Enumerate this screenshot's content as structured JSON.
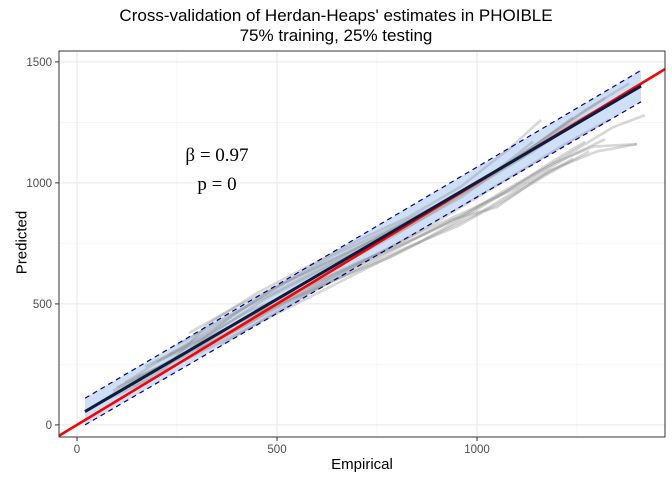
{
  "chart_data": {
    "type": "line",
    "title": "Cross-validation of Herdan-Heaps' estimates in PHOIBLE",
    "subtitle": "75% training, 25% testing",
    "xlabel": "Empirical",
    "ylabel": "Predicted",
    "xlim": [
      -45,
      1470
    ],
    "ylim": [
      -50,
      1545
    ],
    "xticks": [
      0,
      500,
      1000
    ],
    "yticks": [
      0,
      500,
      1000,
      1500
    ],
    "grid": true,
    "annotations": [
      "β = 0.97",
      "p = 0"
    ],
    "fit": {
      "x": [
        20,
        1410
      ],
      "y": [
        55,
        1400
      ],
      "ci_lower": [
        0,
        1335
      ],
      "ci_upper": [
        110,
        1465
      ],
      "color": "#0d1b3e",
      "ribbon_color": "#c6dbf7",
      "bound_color": "#00008b"
    },
    "identity_line": {
      "slope": 1,
      "intercept": 0,
      "color": "#ff0000"
    },
    "series": [
      {
        "values": [
          [
            100,
            155
          ],
          [
            220,
            235
          ],
          [
            330,
            420
          ],
          [
            450,
            545
          ],
          [
            560,
            640
          ],
          [
            700,
            760
          ],
          [
            830,
            860
          ],
          [
            960,
            985
          ],
          [
            1080,
            1140
          ],
          [
            1160,
            1260
          ]
        ]
      },
      {
        "values": [
          [
            120,
            175
          ],
          [
            260,
            280
          ],
          [
            390,
            455
          ],
          [
            520,
            590
          ],
          [
            640,
            680
          ],
          [
            780,
            800
          ],
          [
            900,
            905
          ],
          [
            1020,
            1020
          ],
          [
            1140,
            1150
          ],
          [
            1240,
            1270
          ]
        ]
      },
      {
        "values": [
          [
            150,
            195
          ],
          [
            290,
            310
          ],
          [
            430,
            450
          ],
          [
            560,
            540
          ],
          [
            690,
            650
          ],
          [
            820,
            750
          ],
          [
            940,
            850
          ],
          [
            1050,
            900
          ],
          [
            1180,
            1050
          ],
          [
            1300,
            1130
          ],
          [
            1400,
            1160
          ]
        ]
      },
      {
        "values": [
          [
            200,
            260
          ],
          [
            340,
            370
          ],
          [
            470,
            480
          ],
          [
            600,
            590
          ],
          [
            720,
            680
          ],
          [
            850,
            790
          ],
          [
            970,
            880
          ],
          [
            1100,
            980
          ],
          [
            1230,
            1110
          ],
          [
            1320,
            1180
          ]
        ]
      },
      {
        "values": [
          [
            60,
            95
          ],
          [
            190,
            215
          ],
          [
            320,
            330
          ],
          [
            450,
            450
          ],
          [
            580,
            550
          ],
          [
            700,
            640
          ],
          [
            820,
            730
          ],
          [
            950,
            820
          ],
          [
            1060,
            920
          ],
          [
            1180,
            1040
          ],
          [
            1280,
            1130
          ]
        ]
      },
      {
        "values": [
          [
            230,
            290
          ],
          [
            360,
            420
          ],
          [
            490,
            560
          ],
          [
            620,
            670
          ],
          [
            750,
            770
          ],
          [
            870,
            870
          ],
          [
            990,
            980
          ],
          [
            1110,
            1100
          ],
          [
            1220,
            1230
          ],
          [
            1300,
            1300
          ]
        ]
      },
      {
        "values": [
          [
            250,
            330
          ],
          [
            390,
            460
          ],
          [
            520,
            570
          ],
          [
            650,
            680
          ],
          [
            780,
            800
          ],
          [
            900,
            900
          ],
          [
            1030,
            1030
          ],
          [
            1150,
            1160
          ],
          [
            1270,
            1300
          ],
          [
            1380,
            1410
          ]
        ]
      },
      {
        "values": [
          [
            170,
            240
          ],
          [
            300,
            350
          ],
          [
            430,
            470
          ],
          [
            560,
            560
          ],
          [
            700,
            670
          ],
          [
            830,
            760
          ],
          [
            950,
            850
          ],
          [
            1070,
            970
          ],
          [
            1190,
            1080
          ],
          [
            1290,
            1150
          ],
          [
            1400,
            1160
          ]
        ]
      },
      {
        "values": [
          [
            300,
            310
          ],
          [
            420,
            410
          ],
          [
            540,
            520
          ],
          [
            660,
            610
          ],
          [
            780,
            690
          ],
          [
            900,
            790
          ],
          [
            1010,
            880
          ],
          [
            1120,
            990
          ],
          [
            1240,
            1100
          ]
        ]
      },
      {
        "values": [
          [
            90,
            140
          ],
          [
            210,
            270
          ],
          [
            340,
            380
          ],
          [
            470,
            520
          ],
          [
            600,
            630
          ],
          [
            720,
            730
          ],
          [
            840,
            830
          ],
          [
            960,
            940
          ],
          [
            1080,
            1080
          ],
          [
            1200,
            1220
          ],
          [
            1320,
            1350
          ]
        ]
      },
      {
        "values": [
          [
            360,
            330
          ],
          [
            480,
            450
          ],
          [
            610,
            570
          ],
          [
            740,
            680
          ],
          [
            860,
            780
          ],
          [
            980,
            880
          ],
          [
            1100,
            990
          ],
          [
            1220,
            1110
          ],
          [
            1340,
            1230
          ],
          [
            1420,
            1280
          ]
        ]
      },
      {
        "values": [
          [
            20,
            55
          ],
          [
            140,
            180
          ],
          [
            270,
            300
          ],
          [
            400,
            420
          ],
          [
            530,
            520
          ],
          [
            660,
            630
          ],
          [
            780,
            730
          ],
          [
            900,
            840
          ],
          [
            1010,
            950
          ],
          [
            1120,
            1060
          ],
          [
            1230,
            1170
          ],
          [
            1330,
            1260
          ]
        ]
      },
      {
        "values": [
          [
            140,
            160
          ],
          [
            260,
            260
          ],
          [
            380,
            360
          ],
          [
            500,
            460
          ],
          [
            620,
            560
          ],
          [
            740,
            660
          ],
          [
            850,
            750
          ],
          [
            960,
            850
          ],
          [
            1070,
            960
          ],
          [
            1180,
            1080
          ],
          [
            1270,
            1170
          ]
        ]
      },
      {
        "values": [
          [
            80,
            110
          ],
          [
            200,
            200
          ],
          [
            320,
            320
          ],
          [
            440,
            430
          ],
          [
            560,
            560
          ],
          [
            680,
            680
          ],
          [
            800,
            790
          ],
          [
            920,
            910
          ],
          [
            1040,
            1040
          ],
          [
            1140,
            1170
          ]
        ]
      },
      {
        "values": [
          [
            280,
            380
          ],
          [
            400,
            490
          ],
          [
            520,
            590
          ],
          [
            640,
            700
          ],
          [
            770,
            800
          ],
          [
            890,
            900
          ],
          [
            1010,
            1010
          ],
          [
            1130,
            1120
          ],
          [
            1250,
            1250
          ],
          [
            1350,
            1340
          ]
        ]
      }
    ]
  }
}
